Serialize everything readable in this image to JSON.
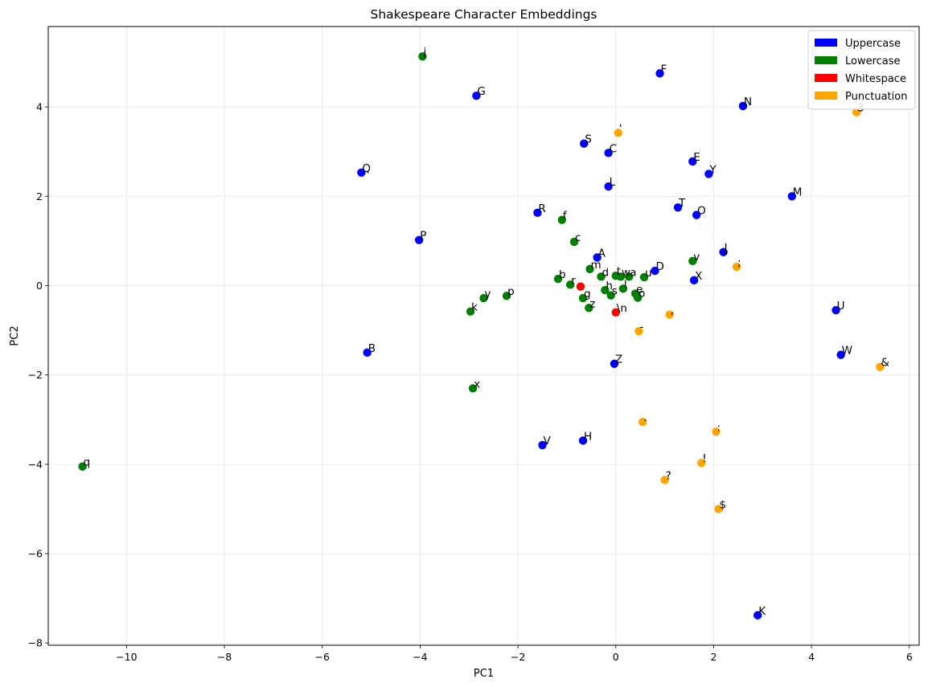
{
  "chart_data": {
    "type": "scatter",
    "title": "Shakespeare Character Embeddings",
    "xlabel": "PC1",
    "ylabel": "PC2",
    "xlim": [
      -11.6,
      6.2
    ],
    "ylim": [
      -8.05,
      5.8
    ],
    "xticks": [
      -10,
      -8,
      -6,
      -4,
      -2,
      0,
      2,
      4,
      6
    ],
    "xtick_labels": [
      "−10",
      "−8",
      "−6",
      "−4",
      "−2",
      "0",
      "2",
      "4",
      "6"
    ],
    "yticks": [
      -8,
      -6,
      -4,
      -2,
      0,
      2,
      4
    ],
    "ytick_labels": [
      "−8",
      "−6",
      "−4",
      "−2",
      "0",
      "2",
      "4"
    ],
    "grid": true,
    "legend_position": "top-right",
    "series": [
      {
        "name": "Uppercase",
        "color": "#0000ff",
        "points": [
          {
            "label": "F",
            "x": 0.9,
            "y": 4.75
          },
          {
            "label": "G",
            "x": -2.85,
            "y": 4.25
          },
          {
            "label": "N",
            "x": 2.6,
            "y": 4.02
          },
          {
            "label": "S",
            "x": -0.65,
            "y": 3.18
          },
          {
            "label": "C",
            "x": -0.15,
            "y": 2.97
          },
          {
            "label": "E",
            "x": 1.57,
            "y": 2.78
          },
          {
            "label": "Y",
            "x": 1.9,
            "y": 2.5
          },
          {
            "label": "Q",
            "x": -5.2,
            "y": 2.53
          },
          {
            "label": "L",
            "x": -0.15,
            "y": 2.22
          },
          {
            "label": "M",
            "x": 3.6,
            "y": 2.0
          },
          {
            "label": "T",
            "x": 1.27,
            "y": 1.75
          },
          {
            "label": "O",
            "x": 1.65,
            "y": 1.58
          },
          {
            "label": "R",
            "x": -1.6,
            "y": 1.63
          },
          {
            "label": "P",
            "x": -4.02,
            "y": 1.02
          },
          {
            "label": "J",
            "x": 2.2,
            "y": 0.75
          },
          {
            "label": "A",
            "x": -0.38,
            "y": 0.63
          },
          {
            "label": "D",
            "x": 0.8,
            "y": 0.33
          },
          {
            "label": "X",
            "x": 1.6,
            "y": 0.12
          },
          {
            "label": "U",
            "x": 4.5,
            "y": -0.55
          },
          {
            "label": "B",
            "x": -5.08,
            "y": -1.5
          },
          {
            "label": "W",
            "x": 4.6,
            "y": -1.55
          },
          {
            "label": "Z",
            "x": -0.03,
            "y": -1.75
          },
          {
            "label": "H",
            "x": -0.67,
            "y": -3.47
          },
          {
            "label": "V",
            "x": -1.5,
            "y": -3.57
          },
          {
            "label": "K",
            "x": 2.9,
            "y": -7.38
          }
        ]
      },
      {
        "name": "Lowercase",
        "color": "#008000",
        "points": [
          {
            "label": "j",
            "x": -3.95,
            "y": 5.13
          },
          {
            "label": "f",
            "x": -1.1,
            "y": 1.47
          },
          {
            "label": "c",
            "x": -0.85,
            "y": 0.98
          },
          {
            "label": "v",
            "x": 1.57,
            "y": 0.55
          },
          {
            "label": "m",
            "x": -0.53,
            "y": 0.37
          },
          {
            "label": "d",
            "x": -0.3,
            "y": 0.2
          },
          {
            "label": "t",
            "x": 0.0,
            "y": 0.22
          },
          {
            "label": "w",
            "x": 0.1,
            "y": 0.2
          },
          {
            "label": "a",
            "x": 0.27,
            "y": 0.2
          },
          {
            "label": "u",
            "x": 0.58,
            "y": 0.19
          },
          {
            "label": "b",
            "x": -1.18,
            "y": 0.15
          },
          {
            "label": "r",
            "x": -0.93,
            "y": 0.02
          },
          {
            "label": "l",
            "x": 0.15,
            "y": -0.07
          },
          {
            "label": "h",
            "x": -0.22,
            "y": -0.1
          },
          {
            "label": "e",
            "x": 0.4,
            "y": -0.18
          },
          {
            "label": "s",
            "x": -0.1,
            "y": -0.22
          },
          {
            "label": "o",
            "x": 0.45,
            "y": -0.27
          },
          {
            "label": "p",
            "x": -2.23,
            "y": -0.23
          },
          {
            "label": "y",
            "x": -2.7,
            "y": -0.28
          },
          {
            "label": "g",
            "x": -0.67,
            "y": -0.28
          },
          {
            "label": "z",
            "x": -0.55,
            "y": -0.5
          },
          {
            "label": "k",
            "x": -2.97,
            "y": -0.58
          },
          {
            "label": "x",
            "x": -2.92,
            "y": -2.3
          },
          {
            "label": "q",
            "x": -10.9,
            "y": -4.05
          }
        ]
      },
      {
        "name": "Whitespace",
        "color": "#ff0000",
        "points": [
          {
            "label": " ",
            "x": -0.72,
            "y": -0.02
          },
          {
            "label": "\\n",
            "x": 0.0,
            "y": -0.6
          }
        ]
      },
      {
        "name": "Punctuation",
        "color": "#ffa500",
        "points": [
          {
            "label": "3",
            "x": 4.92,
            "y": 3.88
          },
          {
            "label": "'",
            "x": 0.05,
            "y": 3.42
          },
          {
            "label": ";",
            "x": 2.47,
            "y": 0.42
          },
          {
            "label": ",",
            "x": 1.1,
            "y": -0.65
          },
          {
            "label": "-",
            "x": 0.47,
            "y": -1.02
          },
          {
            "label": "&",
            "x": 5.4,
            "y": -1.82
          },
          {
            "label": ".",
            "x": 0.55,
            "y": -3.05
          },
          {
            "label": ":",
            "x": 2.05,
            "y": -3.27
          },
          {
            "label": "!",
            "x": 1.75,
            "y": -3.97
          },
          {
            "label": "?",
            "x": 1.0,
            "y": -4.35
          },
          {
            "label": "$",
            "x": 2.1,
            "y": -5.0
          }
        ]
      }
    ]
  }
}
